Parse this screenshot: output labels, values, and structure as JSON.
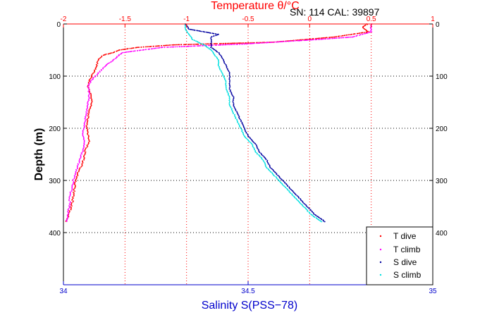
{
  "chart_data": {
    "type": "scatter",
    "header_label": "SN: 114  CAL: 39897",
    "top_axis": {
      "label": "Temperature θ/°C",
      "range": [
        -2,
        1
      ],
      "ticks": [
        "-2",
        "-1.5",
        "-1",
        "-0.5",
        "0",
        "0.5",
        "1"
      ],
      "color": "#ff0000"
    },
    "bottom_axis": {
      "label": "Salinity S(PSS−78)",
      "range": [
        34,
        35
      ],
      "ticks": [
        "34",
        "34.5",
        "35"
      ],
      "color": "#0000cc"
    },
    "y_axis": {
      "label": "Depth (m)",
      "range": [
        0,
        500
      ],
      "ticks": [
        "0",
        "100",
        "200",
        "300",
        "400"
      ],
      "inverted": true
    },
    "grid": true,
    "legend_position": "bottom-right",
    "series": [
      {
        "name": "T dive",
        "axis": "temperature",
        "color": "#ff0000",
        "points": [
          [
            0.47,
            0
          ],
          [
            0.43,
            5
          ],
          [
            0.45,
            10
          ],
          [
            0.48,
            15
          ],
          [
            0.2,
            25
          ],
          [
            -0.3,
            35
          ],
          [
            -1.1,
            40
          ],
          [
            -1.4,
            45
          ],
          [
            -1.55,
            50
          ],
          [
            -1.6,
            55
          ],
          [
            -1.68,
            60
          ],
          [
            -1.72,
            70
          ],
          [
            -1.73,
            80
          ],
          [
            -1.75,
            90
          ],
          [
            -1.77,
            100
          ],
          [
            -1.79,
            110
          ],
          [
            -1.8,
            120
          ],
          [
            -1.78,
            135
          ],
          [
            -1.77,
            150
          ],
          [
            -1.79,
            165
          ],
          [
            -1.8,
            180
          ],
          [
            -1.81,
            195
          ],
          [
            -1.8,
            210
          ],
          [
            -1.79,
            225
          ],
          [
            -1.82,
            240
          ],
          [
            -1.83,
            255
          ],
          [
            -1.85,
            270
          ],
          [
            -1.88,
            285
          ],
          [
            -1.9,
            300
          ],
          [
            -1.91,
            315
          ],
          [
            -1.92,
            330
          ],
          [
            -1.93,
            345
          ],
          [
            -1.95,
            360
          ],
          [
            -1.97,
            375
          ],
          [
            -1.98,
            380
          ]
        ]
      },
      {
        "name": "T climb",
        "axis": "temperature",
        "color": "#ff00ff",
        "points": [
          [
            0.5,
            0
          ],
          [
            0.5,
            5
          ],
          [
            0.5,
            10
          ],
          [
            0.5,
            15
          ],
          [
            0.35,
            25
          ],
          [
            0.05,
            30
          ],
          [
            -0.5,
            38
          ],
          [
            -1.2,
            45
          ],
          [
            -1.52,
            55
          ],
          [
            -1.55,
            60
          ],
          [
            -1.6,
            70
          ],
          [
            -1.66,
            80
          ],
          [
            -1.72,
            95
          ],
          [
            -1.78,
            110
          ],
          [
            -1.8,
            120
          ],
          [
            -1.79,
            135
          ],
          [
            -1.8,
            150
          ],
          [
            -1.81,
            165
          ],
          [
            -1.82,
            180
          ],
          [
            -1.83,
            195
          ],
          [
            -1.84,
            210
          ],
          [
            -1.83,
            225
          ],
          [
            -1.84,
            240
          ],
          [
            -1.86,
            255
          ],
          [
            -1.88,
            270
          ],
          [
            -1.9,
            285
          ],
          [
            -1.92,
            300
          ],
          [
            -1.93,
            315
          ],
          [
            -1.95,
            330
          ],
          [
            -1.95,
            345
          ],
          [
            -1.96,
            360
          ],
          [
            -1.97,
            375
          ],
          [
            -1.98,
            380
          ]
        ]
      },
      {
        "name": "S dive",
        "axis": "salinity",
        "color": "#0000a0",
        "points": [
          [
            34.33,
            0
          ],
          [
            34.34,
            10
          ],
          [
            34.38,
            15
          ],
          [
            34.42,
            20
          ],
          [
            34.4,
            25
          ],
          [
            34.4,
            35
          ],
          [
            34.4,
            45
          ],
          [
            34.42,
            55
          ],
          [
            34.43,
            65
          ],
          [
            34.44,
            80
          ],
          [
            34.45,
            95
          ],
          [
            34.45,
            110
          ],
          [
            34.45,
            125
          ],
          [
            34.46,
            140
          ],
          [
            34.46,
            155
          ],
          [
            34.47,
            170
          ],
          [
            34.48,
            185
          ],
          [
            34.49,
            200
          ],
          [
            34.5,
            215
          ],
          [
            34.52,
            230
          ],
          [
            34.53,
            245
          ],
          [
            34.55,
            260
          ],
          [
            34.56,
            275
          ],
          [
            34.58,
            290
          ],
          [
            34.6,
            305
          ],
          [
            34.62,
            320
          ],
          [
            34.64,
            335
          ],
          [
            34.66,
            350
          ],
          [
            34.68,
            365
          ],
          [
            34.7,
            375
          ],
          [
            34.71,
            380
          ]
        ]
      },
      {
        "name": "S climb",
        "axis": "salinity",
        "color": "#00e0e0",
        "points": [
          [
            34.33,
            0
          ],
          [
            34.33,
            10
          ],
          [
            34.34,
            20
          ],
          [
            34.35,
            30
          ],
          [
            34.38,
            40
          ],
          [
            34.4,
            50
          ],
          [
            34.41,
            60
          ],
          [
            34.42,
            70
          ],
          [
            34.42,
            80
          ],
          [
            34.43,
            95
          ],
          [
            34.44,
            110
          ],
          [
            34.44,
            125
          ],
          [
            34.45,
            140
          ],
          [
            34.45,
            155
          ],
          [
            34.46,
            170
          ],
          [
            34.47,
            185
          ],
          [
            34.48,
            200
          ],
          [
            34.49,
            215
          ],
          [
            34.51,
            230
          ],
          [
            34.52,
            245
          ],
          [
            34.54,
            260
          ],
          [
            34.55,
            275
          ],
          [
            34.57,
            290
          ],
          [
            34.59,
            305
          ],
          [
            34.61,
            320
          ],
          [
            34.63,
            335
          ],
          [
            34.65,
            350
          ],
          [
            34.67,
            365
          ],
          [
            34.69,
            375
          ],
          [
            34.7,
            380
          ]
        ]
      }
    ]
  }
}
